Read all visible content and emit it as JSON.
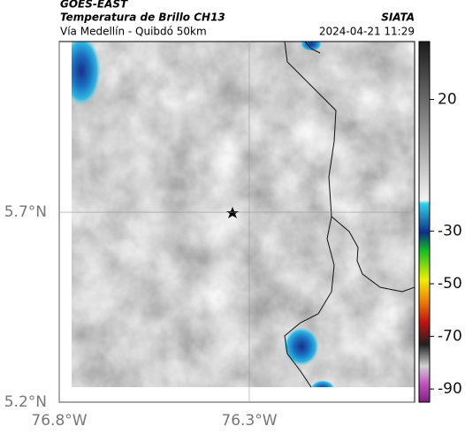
{
  "header": {
    "title": "GOES-EAST",
    "subtitle": "Temperatura de Brillo CH13",
    "route": "Vía Medellín - Quibdó 50km",
    "source": "SIATA",
    "timestamp": "2024-04-21 11:29"
  },
  "map": {
    "lat_lim": [
      5.2,
      6.149
    ],
    "lon_lim": [
      -76.8,
      -75.865
    ],
    "lat_ticks": [
      {
        "value": 5.7,
        "label": "5.7°N"
      },
      {
        "value": 5.2,
        "label": "5.2°N"
      }
    ],
    "lon_ticks": [
      {
        "value": -76.8,
        "label": "76.8°W"
      },
      {
        "value": -76.3,
        "label": "76.3°W"
      }
    ]
  },
  "colorbar": {
    "lim": [
      42,
      -95
    ],
    "ticks": [
      20,
      -30,
      -50,
      -70,
      -90
    ]
  }
}
